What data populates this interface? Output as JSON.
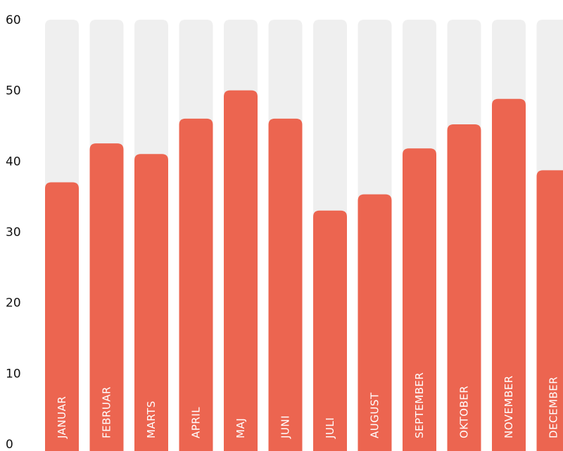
{
  "chart_data": {
    "type": "bar",
    "categories": [
      "JANUAR",
      "FEBRUAR",
      "MARTS",
      "APRIL",
      "MAJ",
      "JUNI",
      "JULI",
      "AUGUST",
      "SEPTEMBER",
      "OKTOBER",
      "NOVEMBER",
      "DECEMBER"
    ],
    "values": [
      37,
      42.5,
      41,
      46,
      50,
      46,
      33,
      35.3,
      41.8,
      45.2,
      48.8,
      38.7
    ],
    "ylim": [
      0,
      60
    ],
    "yticks": [
      0,
      10,
      20,
      30,
      40,
      50,
      60
    ],
    "title": "",
    "xlabel": "",
    "ylabel": "",
    "grid": false,
    "bar_color": "#ec6550",
    "track_color": "#efefef",
    "label_color": "#ffffff",
    "tick_color": "#111111"
  }
}
